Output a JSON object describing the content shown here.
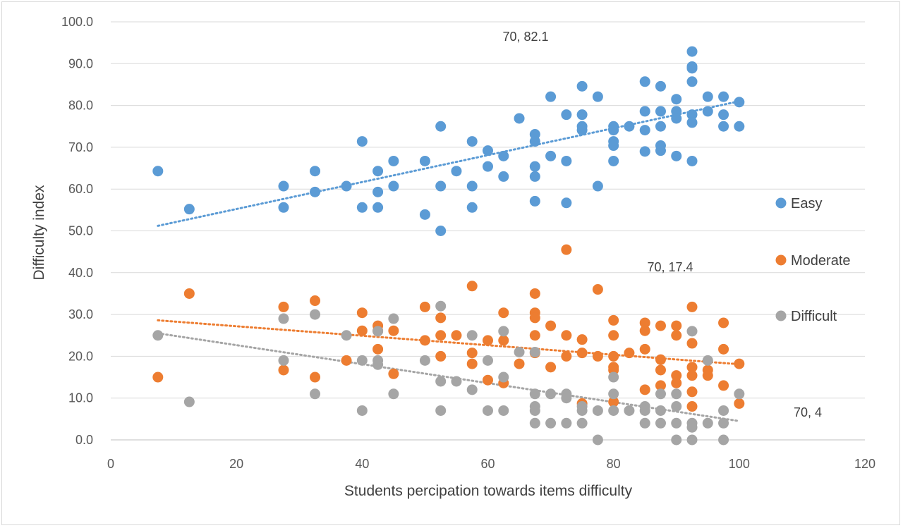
{
  "chart_data": {
    "type": "scatter",
    "title": "",
    "xlabel": "Students percipation towards items difficulty",
    "ylabel": "Difficulty index",
    "xlim": [
      0,
      120
    ],
    "ylim": [
      0,
      100
    ],
    "x_ticks": [
      "0",
      "20",
      "40",
      "60",
      "80",
      "100",
      "120"
    ],
    "y_ticks": [
      "0.0",
      "10.0",
      "20.0",
      "30.0",
      "40.0",
      "50.0",
      "60.0",
      "70.0",
      "80.0",
      "90.0",
      "100.0"
    ],
    "grid": "horizontal",
    "legend_position": "right",
    "series": [
      {
        "name": "Easy",
        "color": "#5b9bd5",
        "trendline": [
          [
            7.5,
            51.2
          ],
          [
            100,
            81.0
          ]
        ],
        "points": [
          [
            7.5,
            64.3
          ],
          [
            12.5,
            55.2
          ],
          [
            27.5,
            60.7
          ],
          [
            27.5,
            55.6
          ],
          [
            32.5,
            64.3
          ],
          [
            32.5,
            59.3
          ],
          [
            37.5,
            60.7
          ],
          [
            40,
            71.4
          ],
          [
            40,
            55.6
          ],
          [
            42.5,
            64.3
          ],
          [
            42.5,
            59.3
          ],
          [
            42.5,
            55.6
          ],
          [
            45,
            66.7
          ],
          [
            45,
            60.7
          ],
          [
            50,
            66.7
          ],
          [
            50,
            53.9
          ],
          [
            52.5,
            75.0
          ],
          [
            52.5,
            60.7
          ],
          [
            52.5,
            50.0
          ],
          [
            55,
            64.3
          ],
          [
            57.5,
            71.4
          ],
          [
            57.5,
            60.7
          ],
          [
            57.5,
            55.6
          ],
          [
            60,
            69.2
          ],
          [
            60,
            65.4
          ],
          [
            62.5,
            67.9
          ],
          [
            62.5,
            63.0
          ],
          [
            65,
            76.9
          ],
          [
            67.5,
            73.1
          ],
          [
            67.5,
            71.4
          ],
          [
            67.5,
            65.4
          ],
          [
            67.5,
            63.0
          ],
          [
            67.5,
            57.1
          ],
          [
            70,
            82.1
          ],
          [
            70,
            67.9
          ],
          [
            72.5,
            77.8
          ],
          [
            72.5,
            66.7
          ],
          [
            72.5,
            56.7
          ],
          [
            75,
            84.6
          ],
          [
            75,
            77.8
          ],
          [
            75,
            75.0
          ],
          [
            75,
            74.1
          ],
          [
            77.5,
            82.1
          ],
          [
            77.5,
            60.7
          ],
          [
            80,
            75.0
          ],
          [
            80,
            74.1
          ],
          [
            80,
            71.4
          ],
          [
            80,
            70.4
          ],
          [
            80,
            66.7
          ],
          [
            82.5,
            75.0
          ],
          [
            85,
            85.7
          ],
          [
            85,
            78.6
          ],
          [
            85,
            74.1
          ],
          [
            85,
            69.0
          ],
          [
            87.5,
            84.6
          ],
          [
            87.5,
            78.6
          ],
          [
            87.5,
            75.0
          ],
          [
            87.5,
            70.4
          ],
          [
            87.5,
            69.2
          ],
          [
            90,
            81.5
          ],
          [
            90,
            78.6
          ],
          [
            90,
            76.9
          ],
          [
            90,
            67.9
          ],
          [
            92.5,
            92.9
          ],
          [
            92.5,
            89.3
          ],
          [
            92.5,
            88.9
          ],
          [
            92.5,
            85.7
          ],
          [
            92.5,
            77.8
          ],
          [
            92.5,
            75.9
          ],
          [
            92.5,
            66.7
          ],
          [
            95,
            82.1
          ],
          [
            95,
            78.6
          ],
          [
            97.5,
            82.1
          ],
          [
            97.5,
            77.8
          ],
          [
            97.5,
            75.0
          ],
          [
            100,
            80.8
          ],
          [
            100,
            75.0
          ]
        ]
      },
      {
        "name": "Moderate",
        "color": "#ed7d31",
        "trendline": [
          [
            7.5,
            28.6
          ],
          [
            100,
            18.1
          ]
        ],
        "points": [
          [
            7.5,
            15.0
          ],
          [
            12.5,
            35.0
          ],
          [
            27.5,
            31.8
          ],
          [
            27.5,
            16.7
          ],
          [
            32.5,
            33.3
          ],
          [
            32.5,
            15.0
          ],
          [
            37.5,
            19.0
          ],
          [
            40,
            30.4
          ],
          [
            40,
            26.1
          ],
          [
            42.5,
            27.3
          ],
          [
            42.5,
            26.1
          ],
          [
            42.5,
            21.7
          ],
          [
            45,
            26.1
          ],
          [
            45,
            15.8
          ],
          [
            50,
            31.8
          ],
          [
            50,
            23.8
          ],
          [
            52.5,
            29.2
          ],
          [
            52.5,
            25.0
          ],
          [
            52.5,
            20.0
          ],
          [
            55,
            25.0
          ],
          [
            57.5,
            36.8
          ],
          [
            57.5,
            20.8
          ],
          [
            57.5,
            18.2
          ],
          [
            60,
            23.8
          ],
          [
            60,
            14.3
          ],
          [
            62.5,
            30.4
          ],
          [
            62.5,
            23.8
          ],
          [
            62.5,
            13.6
          ],
          [
            65,
            18.2
          ],
          [
            67.5,
            35.0
          ],
          [
            67.5,
            30.4
          ],
          [
            67.5,
            29.2
          ],
          [
            67.5,
            25.0
          ],
          [
            67.5,
            20.8
          ],
          [
            70,
            27.3
          ],
          [
            70,
            17.4
          ],
          [
            72.5,
            45.5
          ],
          [
            72.5,
            25.0
          ],
          [
            72.5,
            20.0
          ],
          [
            75,
            24.0
          ],
          [
            75,
            20.8
          ],
          [
            75,
            8.7
          ],
          [
            77.5,
            36.0
          ],
          [
            77.5,
            20.0
          ],
          [
            80,
            28.6
          ],
          [
            80,
            25.0
          ],
          [
            80,
            20.0
          ],
          [
            80,
            17.4
          ],
          [
            80,
            16.7
          ],
          [
            80,
            9.1
          ],
          [
            82.5,
            20.8
          ],
          [
            85,
            28.0
          ],
          [
            85,
            26.1
          ],
          [
            85,
            21.7
          ],
          [
            85,
            12.0
          ],
          [
            87.5,
            27.3
          ],
          [
            87.5,
            19.2
          ],
          [
            87.5,
            16.7
          ],
          [
            87.5,
            13.0
          ],
          [
            90,
            27.3
          ],
          [
            90,
            25.0
          ],
          [
            90,
            15.4
          ],
          [
            90,
            13.6
          ],
          [
            92.5,
            31.8
          ],
          [
            92.5,
            23.1
          ],
          [
            92.5,
            17.4
          ],
          [
            92.5,
            15.4
          ],
          [
            92.5,
            11.5
          ],
          [
            92.5,
            8.0
          ],
          [
            95,
            16.7
          ],
          [
            95,
            15.4
          ],
          [
            97.5,
            28.0
          ],
          [
            97.5,
            21.7
          ],
          [
            97.5,
            13.0
          ],
          [
            100,
            18.2
          ],
          [
            100,
            8.7
          ]
        ]
      },
      {
        "name": "Difficult",
        "color": "#a5a5a5",
        "trendline": [
          [
            7.5,
            25.5
          ],
          [
            100,
            4.5
          ]
        ],
        "points": [
          [
            7.5,
            25.0
          ],
          [
            12.5,
            9.1
          ],
          [
            27.5,
            29.0
          ],
          [
            27.5,
            19.0
          ],
          [
            32.5,
            30.0
          ],
          [
            32.5,
            11.0
          ],
          [
            37.5,
            25.0
          ],
          [
            40,
            19.0
          ],
          [
            40,
            7.0
          ],
          [
            42.5,
            26.0
          ],
          [
            42.5,
            19.0
          ],
          [
            42.5,
            18.0
          ],
          [
            45,
            29.0
          ],
          [
            45,
            11.0
          ],
          [
            50,
            19.0
          ],
          [
            52.5,
            32.0
          ],
          [
            52.5,
            14.0
          ],
          [
            52.5,
            7.0
          ],
          [
            55,
            14.0
          ],
          [
            57.5,
            25.0
          ],
          [
            57.5,
            12.0
          ],
          [
            60,
            19.0
          ],
          [
            60,
            7.0
          ],
          [
            62.5,
            26.0
          ],
          [
            62.5,
            15.0
          ],
          [
            62.5,
            7.0
          ],
          [
            65,
            21.0
          ],
          [
            67.5,
            21.0
          ],
          [
            67.5,
            11.0
          ],
          [
            67.5,
            8.0
          ],
          [
            67.5,
            7.0
          ],
          [
            67.5,
            4.0
          ],
          [
            70,
            11.0
          ],
          [
            70,
            4.0
          ],
          [
            72.5,
            11.0
          ],
          [
            72.5,
            10.0
          ],
          [
            72.5,
            4.0
          ],
          [
            75,
            8.0
          ],
          [
            75,
            7.0
          ],
          [
            75,
            4.0
          ],
          [
            77.5,
            7.0
          ],
          [
            77.5,
            0.0
          ],
          [
            80,
            15.0
          ],
          [
            80,
            11.0
          ],
          [
            80,
            7.0
          ],
          [
            82.5,
            7.0
          ],
          [
            85,
            8.0
          ],
          [
            85,
            7.0
          ],
          [
            85,
            4.0
          ],
          [
            87.5,
            11.0
          ],
          [
            87.5,
            7.0
          ],
          [
            87.5,
            4.0
          ],
          [
            90,
            11.0
          ],
          [
            90,
            8.0
          ],
          [
            90,
            4.0
          ],
          [
            90,
            0.0
          ],
          [
            92.5,
            26.0
          ],
          [
            92.5,
            4.0
          ],
          [
            92.5,
            3.0
          ],
          [
            92.5,
            0.0
          ],
          [
            95,
            19.0
          ],
          [
            95,
            4.0
          ],
          [
            97.5,
            7.0
          ],
          [
            97.5,
            4.0
          ],
          [
            97.5,
            0.0
          ],
          [
            100,
            11.0
          ]
        ]
      }
    ],
    "annotations": [
      {
        "text": "70, 82.1",
        "anchor": "top-center"
      },
      {
        "text": "70, 17.4",
        "anchor": "right-middle"
      },
      {
        "text": "70, 4",
        "anchor": "bottom-right"
      }
    ]
  }
}
